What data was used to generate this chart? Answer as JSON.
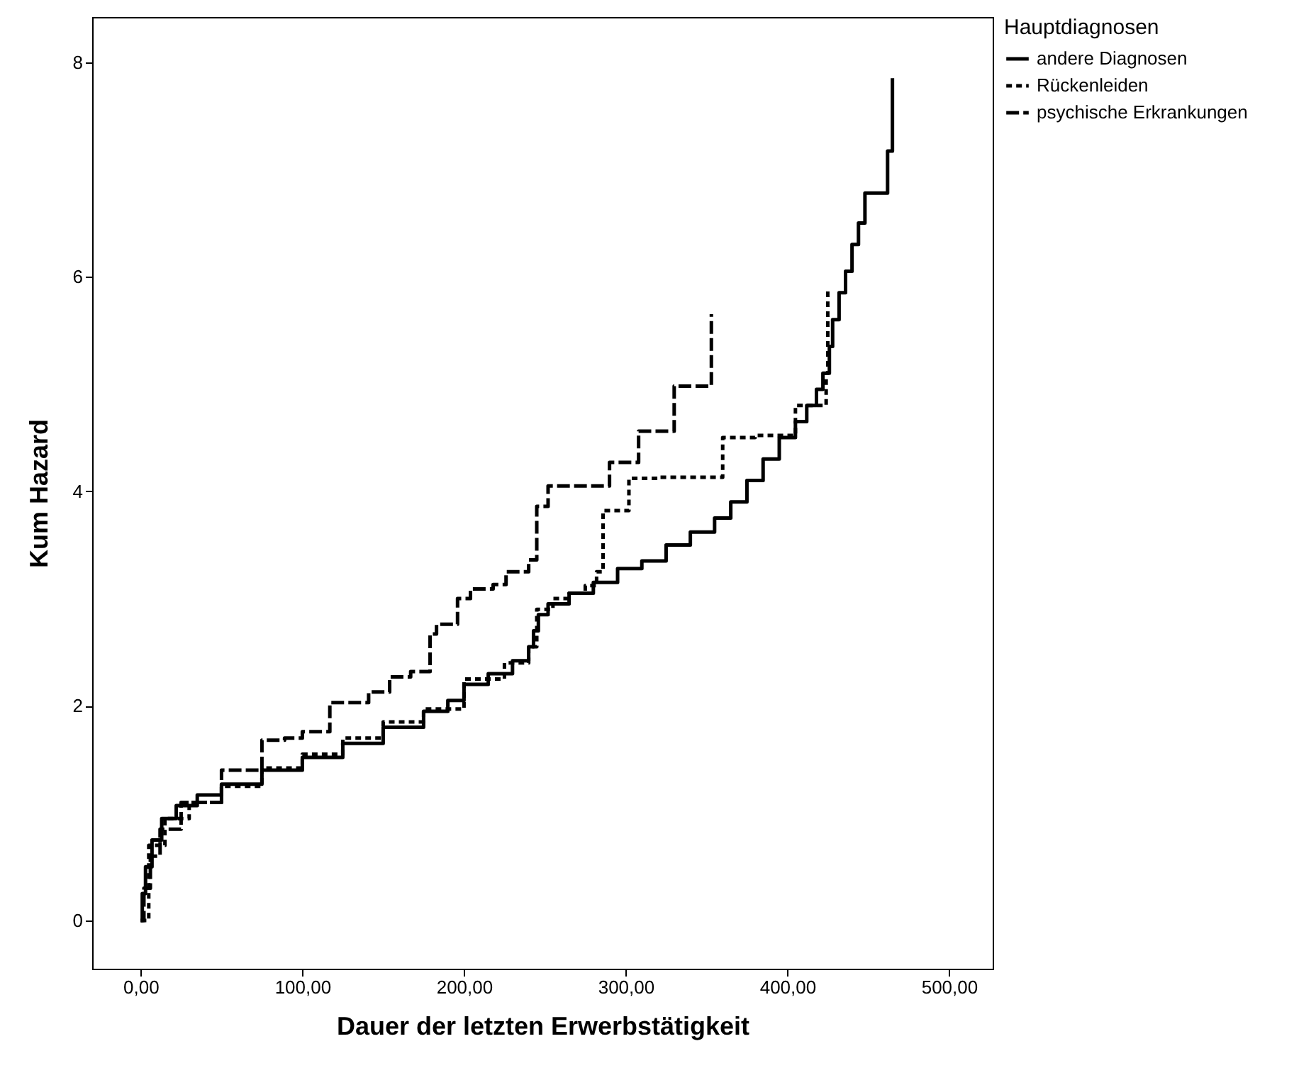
{
  "chart_data": {
    "type": "step",
    "xlabel": "Dauer der letzten Erwerbstätigkeit",
    "ylabel": "Kum Hazard",
    "legend_title": "Hauptdiagnosen",
    "legend": "top right",
    "grid": false,
    "xlim": [
      -30,
      527
    ],
    "ylim": [
      -0.45,
      8.42
    ],
    "xticks": [
      {
        "value": 0,
        "label": "0,00"
      },
      {
        "value": 100,
        "label": "100,00"
      },
      {
        "value": 200,
        "label": "200,00"
      },
      {
        "value": 300,
        "label": "300,00"
      },
      {
        "value": 400,
        "label": "400,00"
      },
      {
        "value": 500,
        "label": "500,00"
      }
    ],
    "yticks": [
      0,
      2,
      4,
      6,
      8
    ],
    "series": [
      {
        "name": "andere Diagnosen",
        "color": "#000000",
        "line_style": "solid",
        "x": [
          0,
          1,
          3,
          7,
          13,
          22,
          35,
          50,
          75,
          100,
          125,
          150,
          175,
          190,
          200,
          215,
          230,
          240,
          243,
          246,
          252,
          265,
          280,
          295,
          310,
          325,
          340,
          355,
          365,
          375,
          385,
          395,
          405,
          412,
          418,
          422,
          426,
          428,
          432,
          436,
          440,
          444,
          448,
          458,
          462,
          465,
          465
        ],
        "values": [
          0,
          0.25,
          0.5,
          0.75,
          0.95,
          1.07,
          1.17,
          1.27,
          1.4,
          1.52,
          1.65,
          1.8,
          1.95,
          2.05,
          2.2,
          2.3,
          2.42,
          2.55,
          2.7,
          2.85,
          2.95,
          3.05,
          3.15,
          3.28,
          3.35,
          3.5,
          3.62,
          3.75,
          3.9,
          4.1,
          4.3,
          4.5,
          4.65,
          4.8,
          4.95,
          5.1,
          5.35,
          5.6,
          5.85,
          6.05,
          6.3,
          6.5,
          6.78,
          6.78,
          7.17,
          7.17,
          7.85
        ]
      },
      {
        "name": "Rückenleiden",
        "color": "#000000",
        "line_style": "dotted",
        "x": [
          0,
          5,
          15,
          30,
          50,
          75,
          100,
          125,
          150,
          175,
          200,
          225,
          240,
          245,
          255,
          265,
          275,
          282,
          286,
          302,
          320,
          355,
          360,
          380,
          400,
          405,
          420,
          424,
          425
        ],
        "values": [
          0,
          0.7,
          0.95,
          1.1,
          1.25,
          1.42,
          1.55,
          1.7,
          1.85,
          1.97,
          2.25,
          2.4,
          2.55,
          2.9,
          3.0,
          3.05,
          3.12,
          3.25,
          3.82,
          4.12,
          4.13,
          4.13,
          4.5,
          4.52,
          4.52,
          4.8,
          4.8,
          5.1,
          5.9
        ]
      },
      {
        "name": "psychische Erkrankungen",
        "color": "#000000",
        "line_style": "dashed",
        "x": [
          0,
          2,
          6,
          12,
          25,
          50,
          75,
          89,
          100,
          117,
          141,
          154,
          167,
          179,
          183,
          196,
          204,
          218,
          226,
          240,
          245,
          252,
          290,
          308,
          330,
          353,
          353
        ],
        "values": [
          0,
          0.3,
          0.6,
          0.85,
          1.1,
          1.4,
          1.68,
          1.7,
          1.76,
          2.03,
          2.13,
          2.27,
          2.32,
          2.67,
          2.76,
          3.0,
          3.09,
          3.13,
          3.25,
          3.36,
          3.86,
          4.05,
          4.27,
          4.56,
          4.98,
          4.98,
          5.65
        ]
      }
    ]
  }
}
